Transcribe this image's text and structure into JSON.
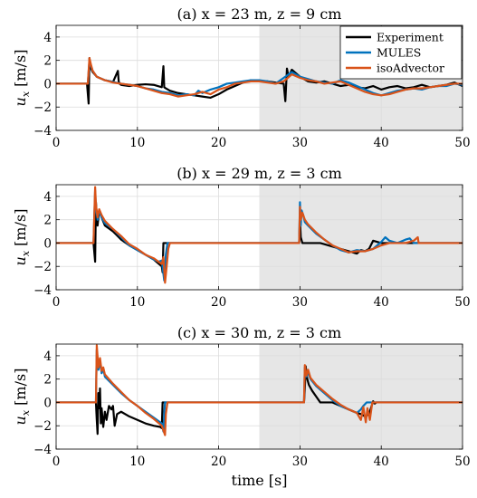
{
  "figure": {
    "colors": {
      "experiment": "#000000",
      "mules": "#0072bd",
      "isoadvector": "#d95319",
      "shade": "#e6e6e6",
      "grid": "#dcdcdc"
    },
    "xlabel": "time [s]"
  },
  "legend": {
    "entries": [
      "Experiment",
      "MULES",
      "isoAdvector"
    ]
  },
  "chart_data": [
    {
      "type": "line",
      "title": "(a) x = 23 m, z = 9 cm",
      "xlabel": "",
      "ylabel": "u_x [m/s]",
      "ylabel_main": "u",
      "ylabel_sub": "x",
      "ylabel_unit": " [m/s]",
      "xlim": [
        0,
        50
      ],
      "ylim": [
        -4,
        5
      ],
      "xticks": [
        0,
        10,
        20,
        30,
        40,
        50
      ],
      "yticks": [
        -4,
        -2,
        0,
        2,
        4
      ],
      "shaded_region": [
        25,
        50
      ],
      "grid": true,
      "legend_position": "top-right",
      "series": [
        {
          "name": "Experiment",
          "x": [
            0,
            3.8,
            4.0,
            4.1,
            4.2,
            4.3,
            4.5,
            5.0,
            6,
            7,
            7.6,
            7.7,
            7.8,
            8,
            9,
            10,
            11,
            12,
            13,
            13.2,
            13.3,
            13.5,
            14,
            15,
            16,
            17,
            18,
            19,
            20,
            21,
            22,
            23,
            24,
            25,
            26,
            27,
            28,
            28.2,
            28.4,
            28.6,
            29,
            30,
            31,
            32,
            33,
            34,
            35,
            36,
            37,
            38,
            39,
            40,
            41,
            42,
            43,
            44,
            45,
            46,
            47,
            48,
            49,
            50
          ],
          "y": [
            0,
            0,
            -1.7,
            2.2,
            1.6,
            1.3,
            1.0,
            0.6,
            0.3,
            0.15,
            1.1,
            0.2,
            0.0,
            -0.1,
            -0.2,
            -0.1,
            -0.05,
            -0.1,
            -0.3,
            1.5,
            -0.3,
            -0.4,
            -0.6,
            -0.8,
            -0.9,
            -1.0,
            -1.1,
            -1.2,
            -0.9,
            -0.5,
            -0.2,
            0.1,
            0.3,
            0.2,
            0.2,
            0.1,
            0.0,
            -1.5,
            1.3,
            0.6,
            1.2,
            0.6,
            0.2,
            0.1,
            0.2,
            0.0,
            -0.2,
            -0.1,
            -0.3,
            -0.4,
            -0.2,
            -0.5,
            -0.3,
            -0.2,
            -0.4,
            -0.3,
            -0.1,
            -0.3,
            -0.2,
            -0.1,
            0.1,
            -0.2
          ]
        },
        {
          "name": "MULES",
          "x": [
            0,
            3.9,
            4.1,
            4.3,
            4.5,
            5.0,
            6,
            7,
            8,
            9,
            10,
            11,
            12,
            13,
            14,
            15,
            16,
            17,
            17.5,
            18,
            19,
            20,
            21,
            22,
            23,
            24,
            25,
            26,
            27,
            28,
            29,
            30,
            31,
            32,
            33,
            34,
            35,
            36,
            37,
            38,
            39,
            40,
            41,
            42,
            43,
            44,
            45,
            46,
            47,
            48,
            49,
            50
          ],
          "y": [
            0,
            0,
            2.0,
            1.5,
            1.1,
            0.6,
            0.3,
            0.15,
            0.0,
            -0.1,
            -0.2,
            -0.4,
            -0.5,
            -0.7,
            -0.8,
            -1.0,
            -0.9,
            -1.0,
            -0.6,
            -0.8,
            -0.5,
            -0.3,
            0.0,
            0.1,
            0.2,
            0.3,
            0.3,
            0.2,
            0.0,
            0.5,
            1.0,
            0.6,
            0.4,
            0.2,
            0.1,
            0.0,
            0.3,
            0.1,
            -0.2,
            -0.5,
            -0.8,
            -1.0,
            -0.8,
            -0.6,
            -0.5,
            -0.4,
            -0.5,
            -0.3,
            -0.2,
            -0.2,
            0.0,
            -0.1
          ]
        },
        {
          "name": "isoAdvector",
          "x": [
            0,
            3.9,
            4.1,
            4.3,
            4.5,
            5.0,
            6,
            7,
            8,
            9,
            10,
            11,
            12,
            13,
            14,
            15,
            16,
            17,
            18,
            19,
            20,
            21,
            22,
            23,
            24,
            25,
            26,
            27,
            28,
            29,
            30,
            31,
            32,
            33,
            34,
            35,
            36,
            37,
            38,
            39,
            40,
            41,
            42,
            43,
            44,
            45,
            46,
            47,
            48,
            49,
            50
          ],
          "y": [
            0,
            0,
            2.2,
            1.6,
            1.1,
            0.6,
            0.3,
            0.1,
            0.0,
            -0.1,
            -0.2,
            -0.4,
            -0.6,
            -0.8,
            -0.9,
            -1.1,
            -1.0,
            -0.9,
            -0.7,
            -0.9,
            -0.5,
            -0.3,
            0.0,
            0.1,
            0.2,
            0.2,
            0.1,
            0.0,
            0.2,
            0.8,
            0.5,
            0.3,
            0.2,
            0.0,
            0.1,
            0.2,
            -0.1,
            -0.4,
            -0.7,
            -0.9,
            -1.0,
            -0.9,
            -0.7,
            -0.5,
            -0.4,
            -0.4,
            -0.3,
            -0.2,
            -0.1,
            0.0,
            0.0
          ]
        }
      ]
    },
    {
      "type": "line",
      "title": "(b) x = 29 m, z = 3 cm",
      "xlabel": "",
      "ylabel": "u_x [m/s]",
      "ylabel_main": "u",
      "ylabel_sub": "x",
      "ylabel_unit": " [m/s]",
      "xlim": [
        0,
        50
      ],
      "ylim": [
        -4,
        5
      ],
      "xticks": [
        0,
        10,
        20,
        30,
        40,
        50
      ],
      "yticks": [
        -4,
        -2,
        0,
        2,
        4
      ],
      "shaded_region": [
        25,
        50
      ],
      "grid": true,
      "legend_position": "none",
      "series": [
        {
          "name": "Experiment",
          "x": [
            0,
            4.6,
            4.8,
            4.9,
            5.0,
            5.1,
            5.3,
            5.6,
            6,
            7,
            8,
            9,
            10,
            11,
            12,
            13,
            13.1,
            13.2,
            13.3,
            13.6,
            14,
            20,
            25,
            29.9,
            30.0,
            30.1,
            30.3,
            30.5,
            31,
            31.5,
            32,
            32.4,
            32.5,
            33,
            34,
            35,
            36,
            37,
            37.5,
            38,
            38.5,
            39,
            40,
            41,
            42,
            43,
            44,
            44.5,
            50
          ],
          "y": [
            0,
            0,
            -1.6,
            3.5,
            2.2,
            1.5,
            2.8,
            2.2,
            1.5,
            1.0,
            0.3,
            -0.2,
            -0.6,
            -1.0,
            -1.4,
            -2.0,
            -2.5,
            0.0,
            0.0,
            0.0,
            0.0,
            0.0,
            0.0,
            0.0,
            2.0,
            0.5,
            0.0,
            0.0,
            0.0,
            0.0,
            0.0,
            0.0,
            0.0,
            -0.1,
            -0.3,
            -0.5,
            -0.7,
            -0.9,
            -0.6,
            -0.7,
            -0.5,
            0.2,
            0.0,
            0.0,
            0.0,
            0.0,
            0.0,
            0.0,
            0.0
          ]
        },
        {
          "name": "MULES",
          "x": [
            0,
            4.6,
            4.8,
            4.9,
            5.1,
            5.3,
            5.6,
            6,
            7,
            8,
            9,
            10,
            11,
            12,
            12.6,
            13,
            13.3,
            13.5,
            13.7,
            14,
            20,
            25,
            29.9,
            30.0,
            30.1,
            30.2,
            30.4,
            30.6,
            31,
            32,
            33,
            34,
            35,
            36,
            37,
            38,
            39,
            40,
            40.5,
            41,
            42,
            43,
            43.5,
            44,
            50
          ],
          "y": [
            0,
            0,
            4.5,
            3.0,
            2.0,
            2.8,
            2.2,
            1.7,
            1.2,
            0.5,
            -0.2,
            -0.6,
            -1.0,
            -1.4,
            -1.6,
            -1.5,
            -3.2,
            -1.0,
            0.0,
            0.0,
            0.0,
            0.0,
            0.0,
            3.5,
            1.5,
            2.8,
            2.4,
            1.8,
            1.5,
            0.8,
            0.3,
            -0.2,
            -0.6,
            -0.8,
            -0.6,
            -0.7,
            -0.5,
            0.1,
            0.5,
            0.2,
            0.0,
            0.3,
            0.4,
            0.0,
            0.0
          ]
        },
        {
          "name": "isoAdvector",
          "x": [
            0,
            4.6,
            4.8,
            4.9,
            5.1,
            5.3,
            5.6,
            6,
            7,
            8,
            9,
            10,
            11,
            12,
            12.6,
            13,
            13.2,
            13.4,
            13.6,
            13.8,
            14,
            20,
            25,
            29.9,
            30.0,
            30.1,
            30.3,
            30.6,
            31,
            32,
            33,
            34,
            35,
            36,
            37,
            38,
            39,
            40,
            41,
            42,
            43,
            44,
            44.5,
            44.6,
            50
          ],
          "y": [
            0,
            0,
            4.8,
            3.3,
            2.2,
            2.9,
            2.4,
            1.9,
            1.2,
            0.6,
            -0.1,
            -0.5,
            -1.0,
            -1.3,
            -1.6,
            -1.8,
            -1.2,
            -3.4,
            -2.0,
            -0.5,
            0.0,
            0.0,
            0.0,
            0.0,
            3.1,
            2.0,
            2.6,
            2.0,
            1.6,
            0.9,
            0.3,
            -0.2,
            -0.5,
            -0.8,
            -0.7,
            -0.7,
            -0.5,
            -0.2,
            0.0,
            0.0,
            0.0,
            0.2,
            0.5,
            0.0,
            0.0
          ]
        }
      ]
    },
    {
      "type": "line",
      "title": "(c) x = 30 m, z = 3 cm",
      "xlabel": "time [s]",
      "ylabel": "u_x [m/s]",
      "ylabel_main": "u",
      "ylabel_sub": "x",
      "ylabel_unit": " [m/s]",
      "xlim": [
        0,
        50
      ],
      "ylim": [
        -4,
        5
      ],
      "xticks": [
        0,
        10,
        20,
        30,
        40,
        50
      ],
      "yticks": [
        -4,
        -2,
        0,
        2,
        4
      ],
      "shaded_region": [
        25,
        50
      ],
      "grid": true,
      "legend_position": "none",
      "series": [
        {
          "name": "Experiment",
          "x": [
            0,
            4.9,
            5.0,
            5.1,
            5.2,
            5.3,
            5.4,
            5.5,
            5.6,
            5.8,
            6.0,
            6.2,
            6.5,
            6.8,
            7.0,
            7.2,
            7.5,
            8,
            9,
            10,
            11,
            12,
            12.8,
            13.0,
            13.1,
            13.3,
            14,
            20,
            25,
            30.5,
            30.6,
            30.7,
            30.9,
            31.1,
            31.5,
            32,
            32.5,
            33.5,
            34,
            35,
            36,
            37,
            37.5,
            38,
            38.5,
            39,
            39.2,
            39.4,
            40,
            50
          ],
          "y": [
            0,
            0,
            -1.5,
            -2.7,
            0.8,
            -0.5,
            1.2,
            -1.8,
            -0.5,
            -2.1,
            -0.8,
            -1.5,
            -0.3,
            -0.6,
            -0.3,
            -2.0,
            -1.0,
            -0.8,
            -1.2,
            -1.5,
            -1.8,
            -2.0,
            -2.1,
            -2.2,
            0.0,
            0.0,
            0.0,
            0.0,
            0.0,
            0.0,
            1.2,
            3.1,
            2.0,
            1.5,
            1.0,
            0.5,
            0.0,
            0.0,
            0.0,
            -0.3,
            -0.6,
            -0.9,
            -1.0,
            -1.2,
            -1.0,
            0.1,
            -0.1,
            0.0,
            0.0,
            0.0
          ]
        },
        {
          "name": "MULES",
          "x": [
            0,
            4.9,
            5.0,
            5.2,
            5.4,
            5.6,
            5.8,
            6,
            7,
            8,
            9,
            10,
            11,
            12,
            13,
            13.2,
            13.3,
            13.4,
            14,
            20,
            25,
            30.5,
            30.6,
            30.8,
            31,
            31.3,
            32,
            33,
            34,
            35,
            36,
            37,
            37.5,
            37.8,
            38.2,
            38.5,
            39,
            50
          ],
          "y": [
            0,
            0,
            4.5,
            2.8,
            3.5,
            2.5,
            2.9,
            2.2,
            1.5,
            0.8,
            0.2,
            -0.3,
            -0.8,
            -1.3,
            -1.8,
            -2.5,
            -1.0,
            0.0,
            0.0,
            0.0,
            0.0,
            0.0,
            3.0,
            2.2,
            2.6,
            2.0,
            1.4,
            0.8,
            0.2,
            -0.3,
            -0.6,
            -0.9,
            -0.6,
            -0.3,
            0.0,
            0.0,
            0.0,
            0.0
          ]
        },
        {
          "name": "isoAdvector",
          "x": [
            0,
            4.9,
            5.0,
            5.2,
            5.4,
            5.6,
            5.8,
            6,
            7,
            8,
            9,
            10,
            11,
            12,
            13,
            13.4,
            13.5,
            13.7,
            14,
            20,
            25,
            30.5,
            30.6,
            30.8,
            31,
            31.3,
            32,
            33,
            34,
            35,
            36,
            37,
            37.5,
            37.8,
            38.1,
            38.3,
            38.6,
            38.9,
            39,
            50
          ],
          "y": [
            0,
            0,
            4.9,
            3.0,
            3.8,
            2.7,
            3.0,
            2.4,
            1.6,
            0.9,
            0.2,
            -0.3,
            -0.9,
            -1.4,
            -2.0,
            -2.8,
            -1.0,
            0.0,
            0.0,
            0.0,
            0.0,
            0.0,
            3.2,
            2.3,
            2.8,
            2.1,
            1.5,
            0.9,
            0.3,
            -0.2,
            -0.6,
            -0.9,
            -1.5,
            -0.4,
            -1.7,
            -0.5,
            -1.5,
            0.0,
            0.0,
            0.0
          ]
        }
      ]
    }
  ]
}
